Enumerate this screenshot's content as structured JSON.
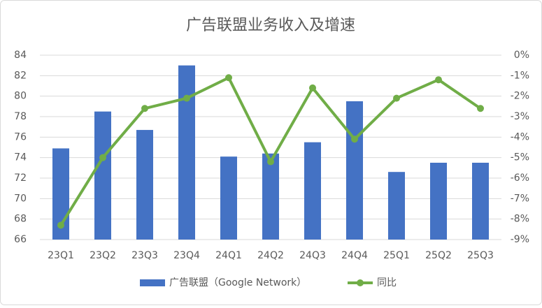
{
  "chart_data": {
    "type": "combo",
    "title": "广告联盟业务收入及增速",
    "categories": [
      "23Q1",
      "23Q2",
      "23Q3",
      "23Q4",
      "24Q1",
      "24Q2",
      "24Q3",
      "24Q4",
      "25Q1",
      "25Q2",
      "25Q3"
    ],
    "series": [
      {
        "name": "广告联盟（Google Network）",
        "type": "bar",
        "color": "#4472c4",
        "values": [
          74.9,
          78.5,
          76.7,
          83,
          74.1,
          74.4,
          75.5,
          79.5,
          72.6,
          73.5,
          73.5
        ]
      },
      {
        "name": "同比",
        "type": "line",
        "axis": "y2",
        "color": "#70ad47",
        "values": [
          -8.3,
          -5.0,
          -2.6,
          -2.1,
          -1.1,
          -5.2,
          -1.6,
          -4.1,
          -2.1,
          -1.2,
          -2.6
        ]
      }
    ],
    "ylim": [
      66,
      84
    ],
    "yticks": [
      66,
      68,
      70,
      72,
      74,
      76,
      78,
      80,
      82,
      84
    ],
    "y2lim": [
      -9,
      0
    ],
    "y2ticks": [
      {
        "value": -9,
        "label": "-9%"
      },
      {
        "value": -8,
        "label": "-8%"
      },
      {
        "value": -7,
        "label": "-7%"
      },
      {
        "value": -6,
        "label": "-6%"
      },
      {
        "value": -5,
        "label": "-5%"
      },
      {
        "value": -4,
        "label": "-4%"
      },
      {
        "value": -3,
        "label": "-3%"
      },
      {
        "value": -2,
        "label": "-2%"
      },
      {
        "value": -1,
        "label": "-1%"
      },
      {
        "value": 0,
        "label": "0%"
      }
    ],
    "grid": true,
    "legend": "bottom"
  }
}
